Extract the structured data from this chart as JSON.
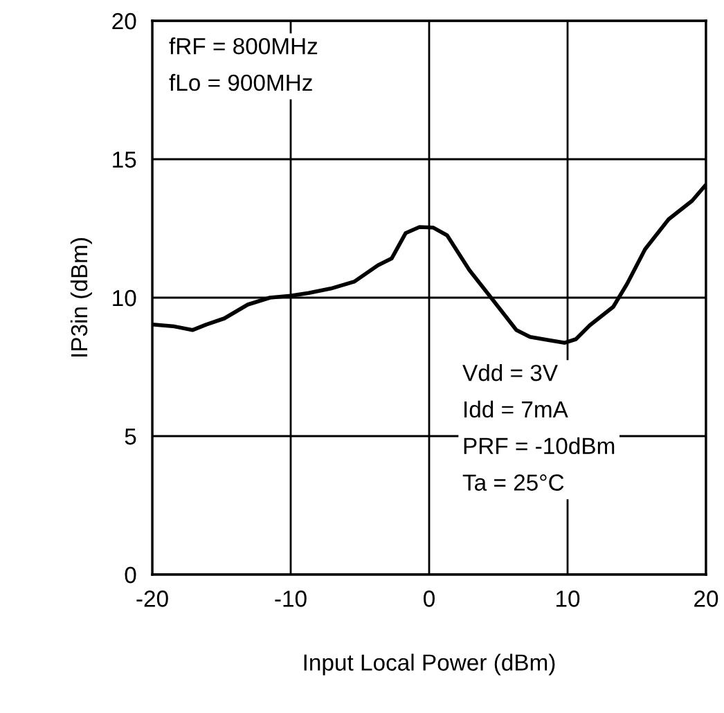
{
  "chart_data": {
    "type": "line",
    "xlabel": "Input Local Power (dBm)",
    "ylabel": "IP3in (dBm)",
    "xlim": [
      -20,
      20
    ],
    "ylim": [
      0,
      20
    ],
    "xticks": [
      -20,
      -10,
      0,
      10,
      20
    ],
    "yticks": [
      0,
      5,
      10,
      15,
      20
    ],
    "grid": true,
    "marker": "none",
    "line_style": "solid",
    "annotations": [
      "fRF = 800MHz\nfLo = 900MHz",
      "Vdd = 3V\nIdd = 7mA\nPRF = -10dBm\nTa = 25°C"
    ],
    "series": [
      {
        "color": "#000000",
        "x": [
          -20,
          -18.4,
          -17.1,
          -16.1,
          -14.8,
          -13.1,
          -11.5,
          -10,
          -8.7,
          -7.1,
          -5.4,
          -3.7,
          -2.7,
          -1.7,
          -0.7,
          0.3,
          1.3,
          2.9,
          4.6,
          6.3,
          7.3,
          8.6,
          9.8,
          10.6,
          11.6,
          13.3,
          14.3,
          15.6,
          17.3,
          19.0,
          20
        ],
        "values": [
          9.03,
          8.96,
          8.83,
          9.03,
          9.25,
          9.75,
          10.0,
          10.07,
          10.17,
          10.33,
          10.58,
          11.17,
          11.42,
          12.33,
          12.55,
          12.53,
          12.25,
          11.0,
          9.92,
          8.83,
          8.58,
          8.47,
          8.37,
          8.5,
          9.0,
          9.67,
          10.5,
          11.75,
          12.83,
          13.5,
          14.08
        ]
      }
    ]
  }
}
